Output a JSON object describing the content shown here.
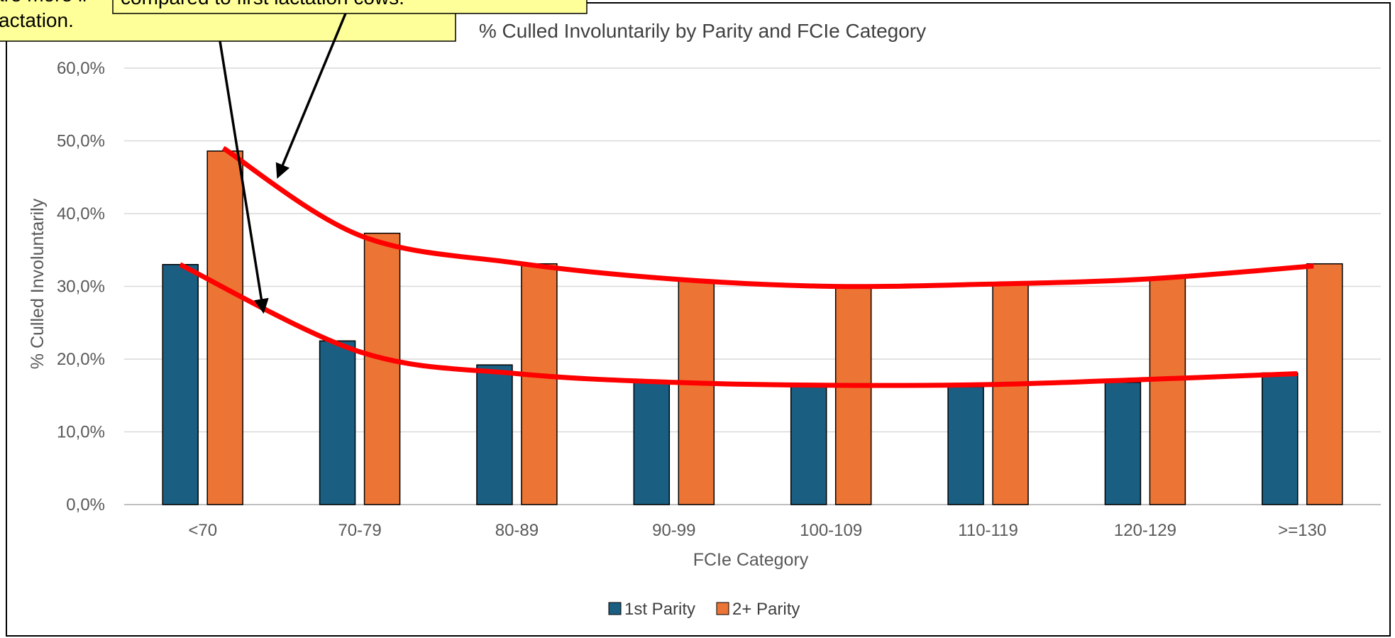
{
  "callouts": {
    "left_lines": [
      "are more li",
      "actation."
    ],
    "right_line": "compared to first lactation cows."
  },
  "chart_data": {
    "type": "bar",
    "title": "% Culled Involuntarily by Parity and FCIe Category",
    "xlabel": "FCIe Category",
    "ylabel": "% Culled Involuntarily",
    "categories": [
      "<70",
      "70-79",
      "80-89",
      "90-99",
      "100-109",
      "110-119",
      "120-129",
      ">=130"
    ],
    "series": [
      {
        "name": "1st Parity",
        "color": "#1a5f82",
        "values": [
          33.0,
          22.5,
          19.2,
          17.0,
          16.2,
          16.2,
          16.8,
          18.1
        ]
      },
      {
        "name": "2+ Parity",
        "color": "#ec7535",
        "values": [
          48.6,
          37.3,
          33.1,
          30.9,
          30.1,
          30.5,
          31.2,
          33.1
        ]
      }
    ],
    "trendlines": [
      {
        "series": "1st Parity",
        "color": "#ff0000",
        "values": [
          33.0,
          21.0,
          18.0,
          16.8,
          16.4,
          16.5,
          17.2,
          18.0
        ]
      },
      {
        "series": "2+ Parity",
        "color": "#ff0000",
        "values": [
          49.0,
          37.0,
          33.2,
          31.0,
          30.0,
          30.3,
          31.0,
          32.8
        ]
      }
    ],
    "ylim": [
      0,
      60
    ],
    "yticks": [
      "0,0%",
      "10,0%",
      "20,0%",
      "30,0%",
      "40,0%",
      "50,0%",
      "60,0%"
    ],
    "grid": true,
    "legend_position": "bottom"
  }
}
